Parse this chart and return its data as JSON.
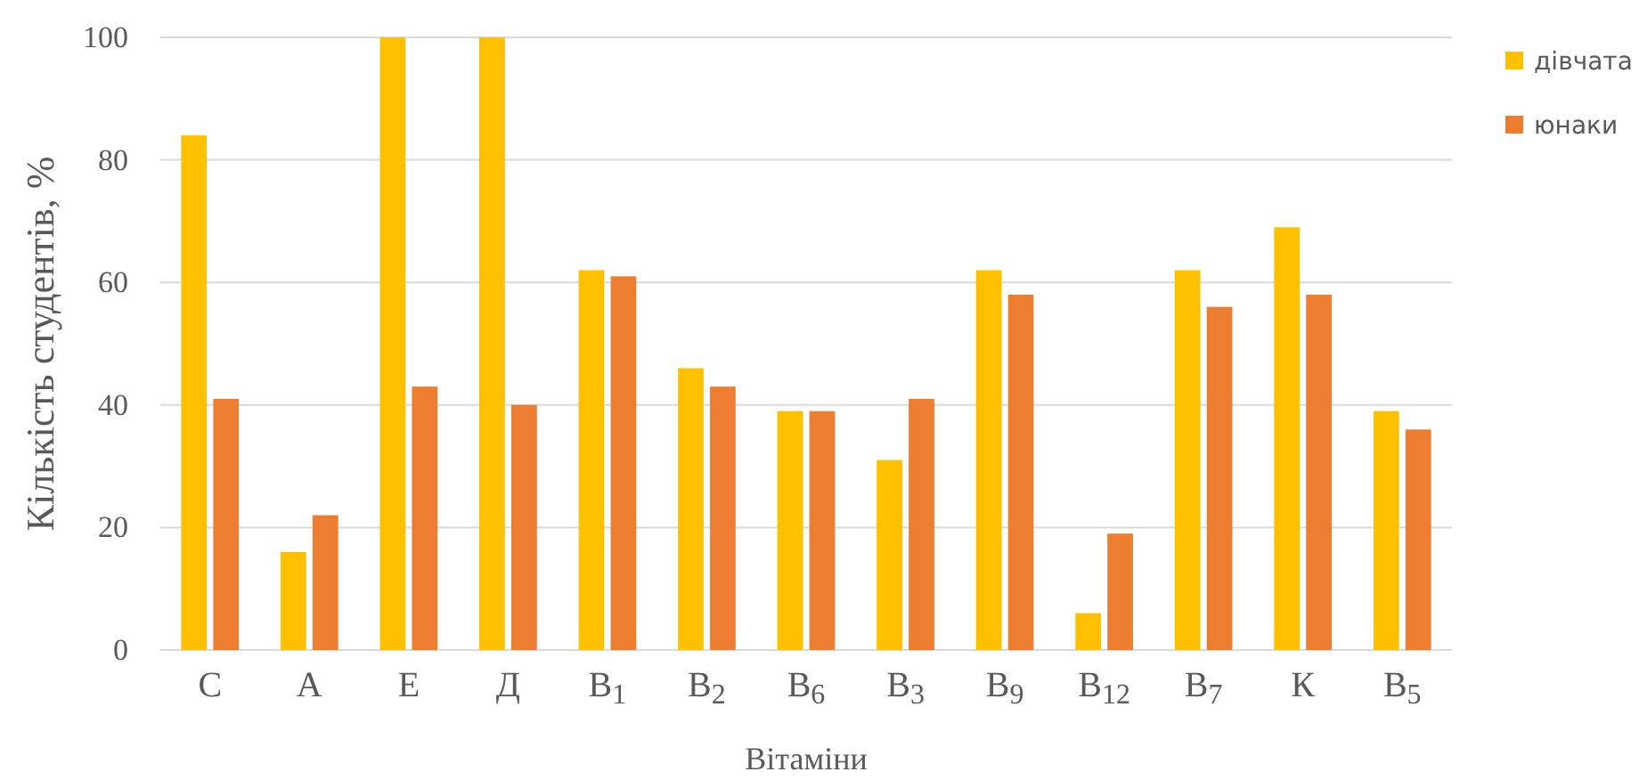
{
  "chart_data": {
    "type": "bar",
    "xlabel": "Вітаміни",
    "ylabel": "Кількість студентів, %",
    "categories": [
      "С",
      "А",
      "Е",
      "Д",
      "В$_{1}$",
      "В$_{2}$",
      "В$_{6}$",
      "В$_{3}$",
      "В$_{9}$",
      "В$_{12}$",
      "В$_{7}$",
      "К",
      "В$_{5}$"
    ],
    "series": [
      {
        "name": "дівчата",
        "color": "#ffc000",
        "values": [
          84,
          16,
          100,
          100,
          62,
          46,
          39,
          31,
          62,
          6,
          62,
          69,
          39
        ]
      },
      {
        "name": "юнаки",
        "color": "#ed7d31",
        "values": [
          41,
          22,
          43,
          40,
          61,
          43,
          39,
          41,
          58,
          19,
          56,
          58,
          36
        ]
      }
    ],
    "ylim": [
      0,
      100
    ],
    "yticks": [
      0,
      20,
      40,
      60,
      80,
      100
    ],
    "grid": "y",
    "legend": "top right"
  }
}
